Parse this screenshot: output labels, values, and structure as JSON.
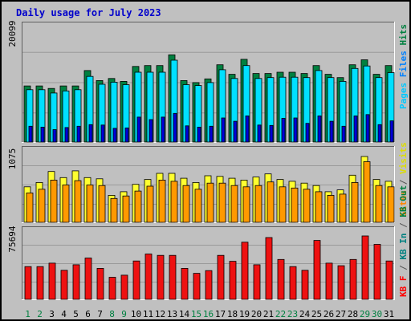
{
  "chart_data": {
    "type": "bar",
    "title": "Daily usage for July 2023",
    "days": [
      "1",
      "2",
      "3",
      "4",
      "5",
      "6",
      "7",
      "8",
      "9",
      "10",
      "11",
      "12",
      "13",
      "14",
      "15",
      "16",
      "17",
      "18",
      "19",
      "20",
      "21",
      "22",
      "23",
      "24",
      "25",
      "26",
      "27",
      "28",
      "29",
      "30",
      "31"
    ],
    "weekend_days": [
      "1",
      "2",
      "8",
      "9",
      "15",
      "16",
      "22",
      "23",
      "29",
      "30"
    ],
    "panels": [
      {
        "name": "hits-files-pages",
        "scale_label": "20099",
        "ylim": [
          0,
          28000
        ],
        "legend": [
          {
            "text": "Pages",
            "color": "#00c8ff"
          },
          {
            "text": "Files",
            "color": "#0080ff"
          },
          {
            "text": "Hits",
            "color": "#008040"
          }
        ],
        "series": [
          {
            "name": "Hits",
            "color": "#008040",
            "values": [
              13500,
              13500,
              12900,
              13500,
              13500,
              17200,
              14800,
              15300,
              14600,
              18200,
              18400,
              18400,
              21000,
              14800,
              14300,
              15200,
              18600,
              16300,
              19900,
              16500,
              16500,
              16800,
              16800,
              16500,
              18400,
              16300,
              15500,
              18600,
              19800,
              16300,
              18400
            ]
          },
          {
            "name": "Files",
            "color": "#00e0ff",
            "values": [
              12600,
              12600,
              11800,
              12300,
              12600,
              15800,
              13900,
              14400,
              13800,
              16800,
              16800,
              16800,
              19700,
              13800,
              13600,
              14300,
              17400,
              15300,
              18400,
              15300,
              15500,
              15600,
              15600,
              15500,
              17200,
              15500,
              14600,
              17700,
              18300,
              15500,
              16700
            ]
          },
          {
            "name": "Pages",
            "color": "#0000d8",
            "values": [
              3800,
              3600,
              3000,
              3500,
              3800,
              4200,
              4100,
              3300,
              3400,
              6000,
              5400,
              6000,
              6900,
              3900,
              3600,
              3800,
              5800,
              5000,
              6300,
              4100,
              4000,
              5700,
              5800,
              4500,
              6300,
              5000,
              3800,
              6300,
              6600,
              4200,
              5100
            ]
          }
        ]
      },
      {
        "name": "visits-sites",
        "scale_label": "1075",
        "ylim": [
          0,
          1180
        ],
        "legend": [
          {
            "text": "Sites",
            "color": "#ff8800"
          },
          {
            "text": "/",
            "color": "#555555"
          },
          {
            "text": "Visits",
            "color": "#dddd00"
          }
        ],
        "series": [
          {
            "name": "Visits",
            "color": "#ffff30",
            "values": [
              580,
              650,
              830,
              730,
              840,
              730,
              710,
              440,
              500,
              620,
              700,
              800,
              800,
              720,
              650,
              760,
              750,
              720,
              690,
              740,
              790,
              700,
              670,
              640,
              600,
              500,
              530,
              770,
              1075,
              700,
              670
            ]
          },
          {
            "name": "Sites",
            "color": "#ff9900",
            "values": [
              480,
              540,
              690,
              610,
              680,
              610,
              600,
              390,
              430,
              510,
              590,
              690,
              670,
              600,
              540,
              640,
              640,
              600,
              580,
              600,
              660,
              580,
              560,
              540,
              500,
              440,
              460,
              650,
              990,
              600,
              580
            ]
          }
        ]
      },
      {
        "name": "kbytes",
        "scale_label": "75694",
        "ylim": [
          0,
          84500
        ],
        "legend": [
          {
            "text": "KB F",
            "color": "#ff0000"
          },
          {
            "text": "/",
            "color": "#555555"
          },
          {
            "text": "KB In",
            "color": "#008080"
          },
          {
            "text": "/",
            "color": "#555555"
          },
          {
            "text": "KB Out",
            "color": "#008040"
          }
        ],
        "series": [
          {
            "name": "KB F",
            "color": "#ee1111",
            "values": [
              40100,
              40100,
              44300,
              35600,
              42300,
              50600,
              37900,
              27000,
              29600,
              47000,
              55500,
              53800,
              53800,
              37900,
              31800,
              35200,
              53800,
              46600,
              70000,
              42300,
              75700,
              48800,
              40100,
              35600,
              72100,
              44300,
              41200,
              48800,
              77600,
              67300,
              47000
            ]
          }
        ]
      }
    ]
  }
}
